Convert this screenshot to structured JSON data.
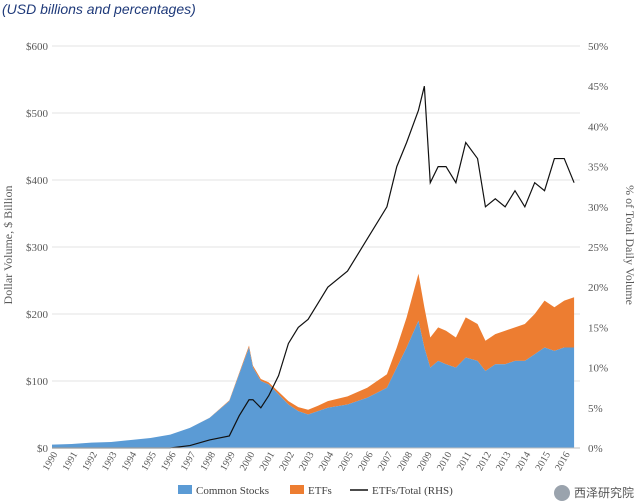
{
  "chart_data": {
    "type": "area",
    "title": "",
    "subtitle": "(USD billions and percentages)",
    "ylabel_left": "Dollar Volume, $ Billion",
    "ylabel_right": "% of Total Daily Volume",
    "ylim_left": [
      0,
      600
    ],
    "ylim_right": [
      0,
      50
    ],
    "yticks_left": [
      "$0",
      "$100",
      "$200",
      "$300",
      "$400",
      "$500",
      "$600"
    ],
    "yticks_right": [
      "0%",
      "5%",
      "10%",
      "15%",
      "20%",
      "25%",
      "30%",
      "35%",
      "40%",
      "45%",
      "50%"
    ],
    "xticks": [
      "1990",
      "1991",
      "1992",
      "1993",
      "1994",
      "1995",
      "1996",
      "1997",
      "1998",
      "1999",
      "2000",
      "2001",
      "2002",
      "2003",
      "2004",
      "2005",
      "2006",
      "2007",
      "2008",
      "2009",
      "2010",
      "2011",
      "2012",
      "2013",
      "2014",
      "2015",
      "2016"
    ],
    "x": [
      1990.0,
      1991.0,
      1992.0,
      1993.0,
      1994.0,
      1995.0,
      1996.0,
      1997.0,
      1998.0,
      1999.0,
      1999.5,
      2000.0,
      2000.2,
      2000.6,
      2001.0,
      2001.5,
      2002.0,
      2002.5,
      2003.0,
      2003.5,
      2004.0,
      2005.0,
      2006.0,
      2007.0,
      2007.5,
      2008.0,
      2008.6,
      2008.9,
      2009.2,
      2009.6,
      2010.0,
      2010.5,
      2011.0,
      2011.6,
      2012.0,
      2012.5,
      2013.0,
      2013.5,
      2014.0,
      2014.5,
      2015.0,
      2015.5,
      2016.0,
      2016.5
    ],
    "series": [
      {
        "name": "Common Stocks",
        "color": "#5b9bd5",
        "values": [
          5,
          6,
          8,
          9,
          12,
          15,
          20,
          30,
          45,
          70,
          110,
          150,
          120,
          100,
          95,
          80,
          65,
          55,
          50,
          55,
          60,
          65,
          75,
          90,
          120,
          150,
          190,
          150,
          120,
          130,
          125,
          120,
          135,
          130,
          115,
          125,
          125,
          130,
          130,
          140,
          150,
          145,
          150,
          150
        ]
      },
      {
        "name": "ETFs",
        "color": "#ed7d31",
        "values": [
          0,
          0,
          0,
          0,
          0,
          0,
          0,
          0,
          0.2,
          1,
          2,
          3,
          3,
          3,
          3,
          4,
          5,
          6,
          7,
          8,
          10,
          12,
          15,
          20,
          30,
          45,
          70,
          60,
          45,
          50,
          50,
          45,
          60,
          55,
          45,
          45,
          50,
          50,
          55,
          60,
          70,
          65,
          70,
          75
        ]
      },
      {
        "name": "ETFs/Total (RHS)",
        "color": "#111111",
        "axis": "right",
        "values": [
          0,
          0,
          0,
          0,
          0,
          0,
          0,
          0.3,
          1,
          1.5,
          4,
          6,
          6,
          5,
          6.5,
          9,
          13,
          15,
          16,
          18,
          20,
          22,
          26,
          30,
          35,
          38,
          42,
          45,
          33,
          35,
          35,
          33,
          38,
          36,
          30,
          31,
          30,
          32,
          30,
          33,
          32,
          36,
          36,
          33
        ]
      }
    ],
    "grid": true,
    "legend": "bottom-center"
  },
  "watermark": {
    "text": "西泽研究院"
  }
}
